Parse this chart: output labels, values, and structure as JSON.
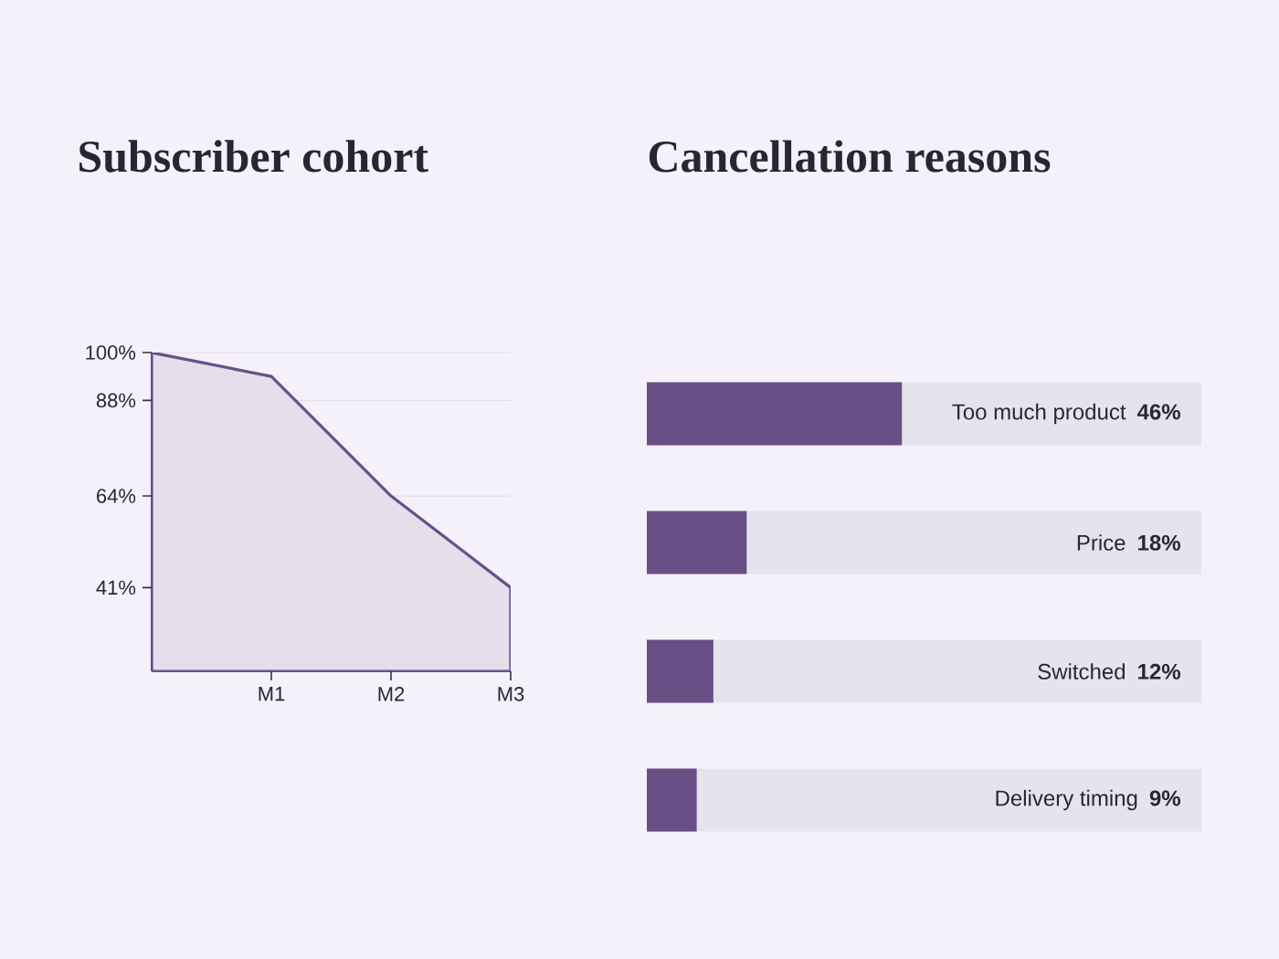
{
  "chart_data": [
    {
      "type": "area",
      "title": "Subscriber cohort",
      "categories": [
        null,
        "M1",
        "M2",
        "M3"
      ],
      "values": [
        100,
        94,
        64,
        41
      ],
      "color": "#67508a",
      "ylim": [
        20,
        100
      ],
      "yticks": [
        {
          "value": 41,
          "label": "41%"
        },
        {
          "value": 64,
          "label": "64%"
        },
        {
          "value": 88,
          "label": "88%"
        },
        {
          "value": 100,
          "label": "100%"
        }
      ],
      "grid": "y"
    },
    {
      "type": "bar",
      "orientation": "horizontal",
      "title": "Cancellation reasons",
      "categories": [
        "Too much product",
        "Price",
        "Switched",
        "Delivery timing"
      ],
      "values": [
        46,
        18,
        12,
        9
      ],
      "value_labels": [
        "46%",
        "18%",
        "12%",
        "9%"
      ],
      "color": "#684f86",
      "xlim": [
        0,
        100
      ],
      "tick_labels": false
    }
  ]
}
